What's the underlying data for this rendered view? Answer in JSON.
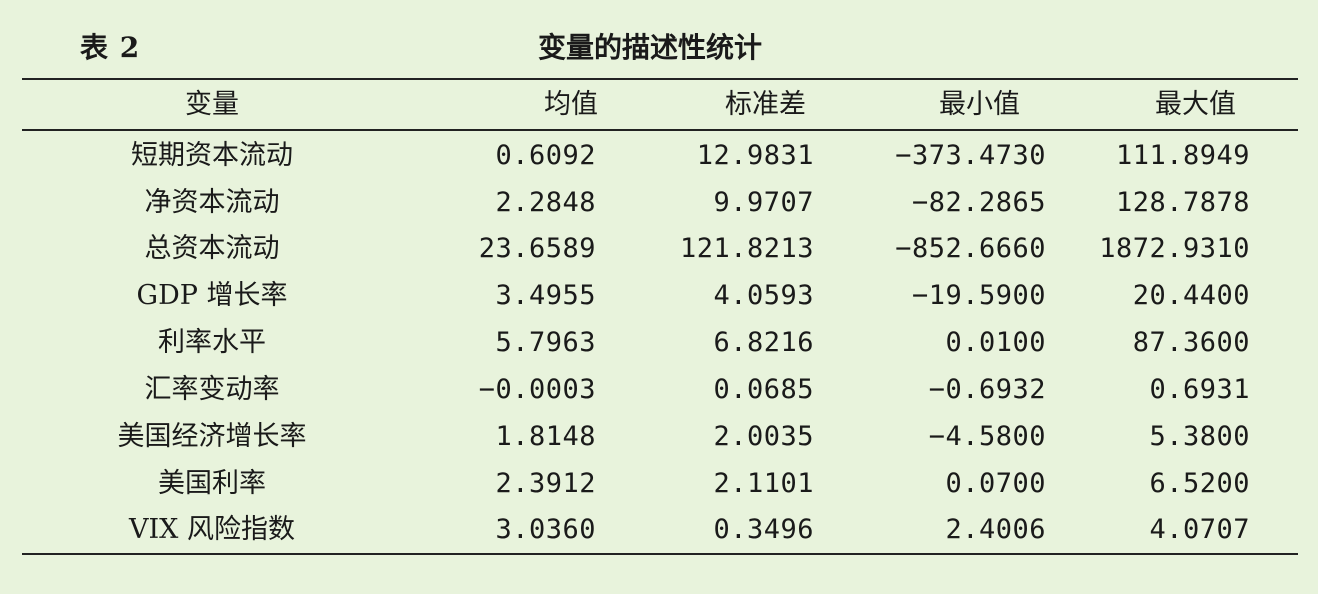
{
  "table_label": "表 2",
  "table_title": "变量的描述性统计",
  "headers": [
    "变量",
    "均值",
    "标准差",
    "最小值",
    "最大值"
  ],
  "rows": [
    [
      "短期资本流动",
      "0.6092",
      "12.9831",
      "−373.4730",
      "111.8949"
    ],
    [
      "净资本流动",
      "2.2848",
      "9.9707",
      "−82.2865",
      "128.7878"
    ],
    [
      "总资本流动",
      "23.6589",
      "121.8213",
      "−852.6660",
      "1872.9310"
    ],
    [
      "GDP 增长率",
      "3.4955",
      "4.0593",
      "−19.5900",
      "20.4400"
    ],
    [
      "利率水平",
      "5.7963",
      "6.8216",
      "0.0100",
      "87.3600"
    ],
    [
      "汇率变动率",
      "−0.0003",
      "0.0685",
      "−0.6932",
      "0.6931"
    ],
    [
      "美国经济增长率",
      "1.8148",
      "2.0035",
      "−4.5800",
      "5.3800"
    ],
    [
      "美国利率",
      "2.3912",
      "2.1101",
      "0.0700",
      "6.5200"
    ],
    [
      "VIX 风险指数",
      "3.0360",
      "0.3496",
      "2.4006",
      "4.0707"
    ]
  ]
}
